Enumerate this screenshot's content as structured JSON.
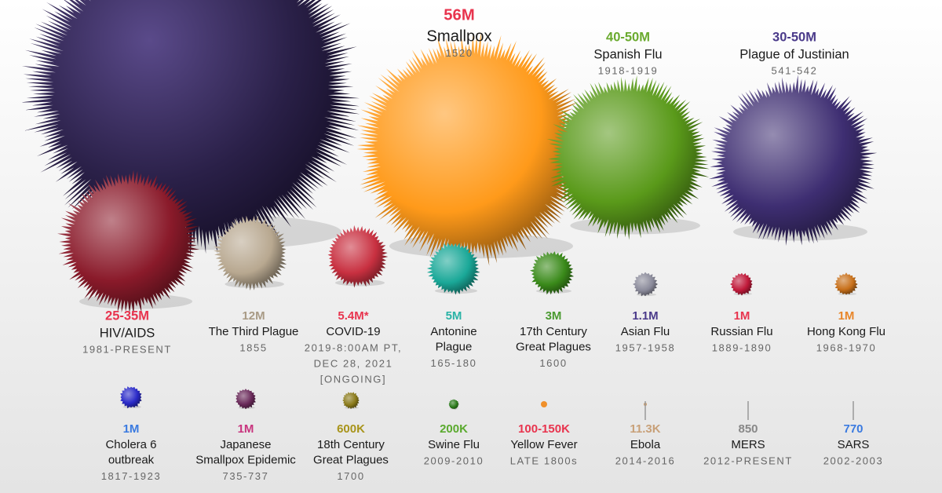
{
  "pandemics": [
    {
      "toll": "56M",
      "name": [
        "Smallpox"
      ],
      "years": [
        "1520"
      ],
      "toll_color": "#e8344e",
      "ball_color": "#ff9a1a"
    },
    {
      "toll": "40-50M",
      "name": [
        "Spanish Flu"
      ],
      "years": [
        "1918-1919"
      ],
      "toll_color": "#6aaa2e",
      "ball_color": "#5a9a1a"
    },
    {
      "toll": "30-50M",
      "name": [
        "Plague of Justinian"
      ],
      "years": [
        "541-542"
      ],
      "toll_color": "#4a3a8a",
      "ball_color": "#3e2e72"
    },
    {
      "toll": "25-35M",
      "name": [
        "HIV/AIDS"
      ],
      "years": [
        "1981-PRESENT"
      ],
      "toll_color": "#e8344e",
      "ball_color": "#8a1a2a"
    },
    {
      "toll": "12M",
      "name": [
        "The Third Plague"
      ],
      "years": [
        "1855"
      ],
      "toll_color": "#a89a85",
      "ball_color": "#b8a890"
    },
    {
      "toll": "5.4M*",
      "name": [
        "COVID-19"
      ],
      "years": [
        "2019-8:00AM PT,",
        "DEC 28, 2021"
      ],
      "note": "[ONGOING]",
      "note_color": "#e8344e",
      "toll_color": "#e8344e",
      "ball_color": "#c83040"
    },
    {
      "toll": "5M",
      "name": [
        "Antonine",
        "Plague"
      ],
      "years": [
        "165-180"
      ],
      "toll_color": "#2ab3a6",
      "ball_color": "#1aa898"
    },
    {
      "toll": "3M",
      "name": [
        "17th Century",
        "Great Plagues"
      ],
      "years": [
        "1600"
      ],
      "toll_color": "#4a9a30",
      "ball_color": "#3a8a1a"
    },
    {
      "toll": "1.1M",
      "name": [
        "Asian Flu"
      ],
      "years": [
        "1957-1958"
      ],
      "toll_color": "#4a3a8a",
      "ball_color": "#8a8a9a"
    },
    {
      "toll": "1M",
      "name": [
        "Russian Flu"
      ],
      "years": [
        "1889-1890"
      ],
      "toll_color": "#e8344e",
      "ball_color": "#c01a3a"
    },
    {
      "toll": "1M",
      "name": [
        "Hong Kong Flu"
      ],
      "years": [
        "1968-1970"
      ],
      "toll_color": "#e8862a",
      "ball_color": "#c8701a"
    },
    {
      "toll": "1M",
      "name": [
        "Cholera 6",
        "outbreak"
      ],
      "years": [
        "1817-1923"
      ],
      "toll_color": "#3a7ae0",
      "ball_color": "#2a2ac8"
    },
    {
      "toll": "1M",
      "name": [
        "Japanese",
        "Smallpox Epidemic"
      ],
      "years": [
        "735-737"
      ],
      "toll_color": "#c8347e",
      "ball_color": "#6a2a5a"
    },
    {
      "toll": "600K",
      "name": [
        "18th Century",
        "Great Plagues"
      ],
      "years": [
        "1700"
      ],
      "toll_color": "#a8941a",
      "ball_color": "#8a7a1a"
    },
    {
      "toll": "200K",
      "name": [
        "Swine Flu"
      ],
      "years": [
        "2009-2010"
      ],
      "toll_color": "#5aaa2e",
      "ball_color": "#2a7a1a"
    },
    {
      "toll": "100-150K",
      "name": [
        "Yellow Fever"
      ],
      "years": [
        "LATE 1800s"
      ],
      "toll_color": "#e8344e",
      "ball_color": "#f0902a"
    },
    {
      "toll": "11.3K",
      "name": [
        "Ebola"
      ],
      "years": [
        "2014-2016"
      ],
      "toll_color": "#c8a078",
      "ball_color": "#d0a070"
    },
    {
      "toll": "850",
      "name": [
        "MERS"
      ],
      "years": [
        "2012-PRESENT"
      ],
      "toll_color": "#888888"
    },
    {
      "toll": "770",
      "name": [
        "SARS"
      ],
      "years": [
        "2002-2003"
      ],
      "toll_color": "#3a7ae0"
    }
  ]
}
